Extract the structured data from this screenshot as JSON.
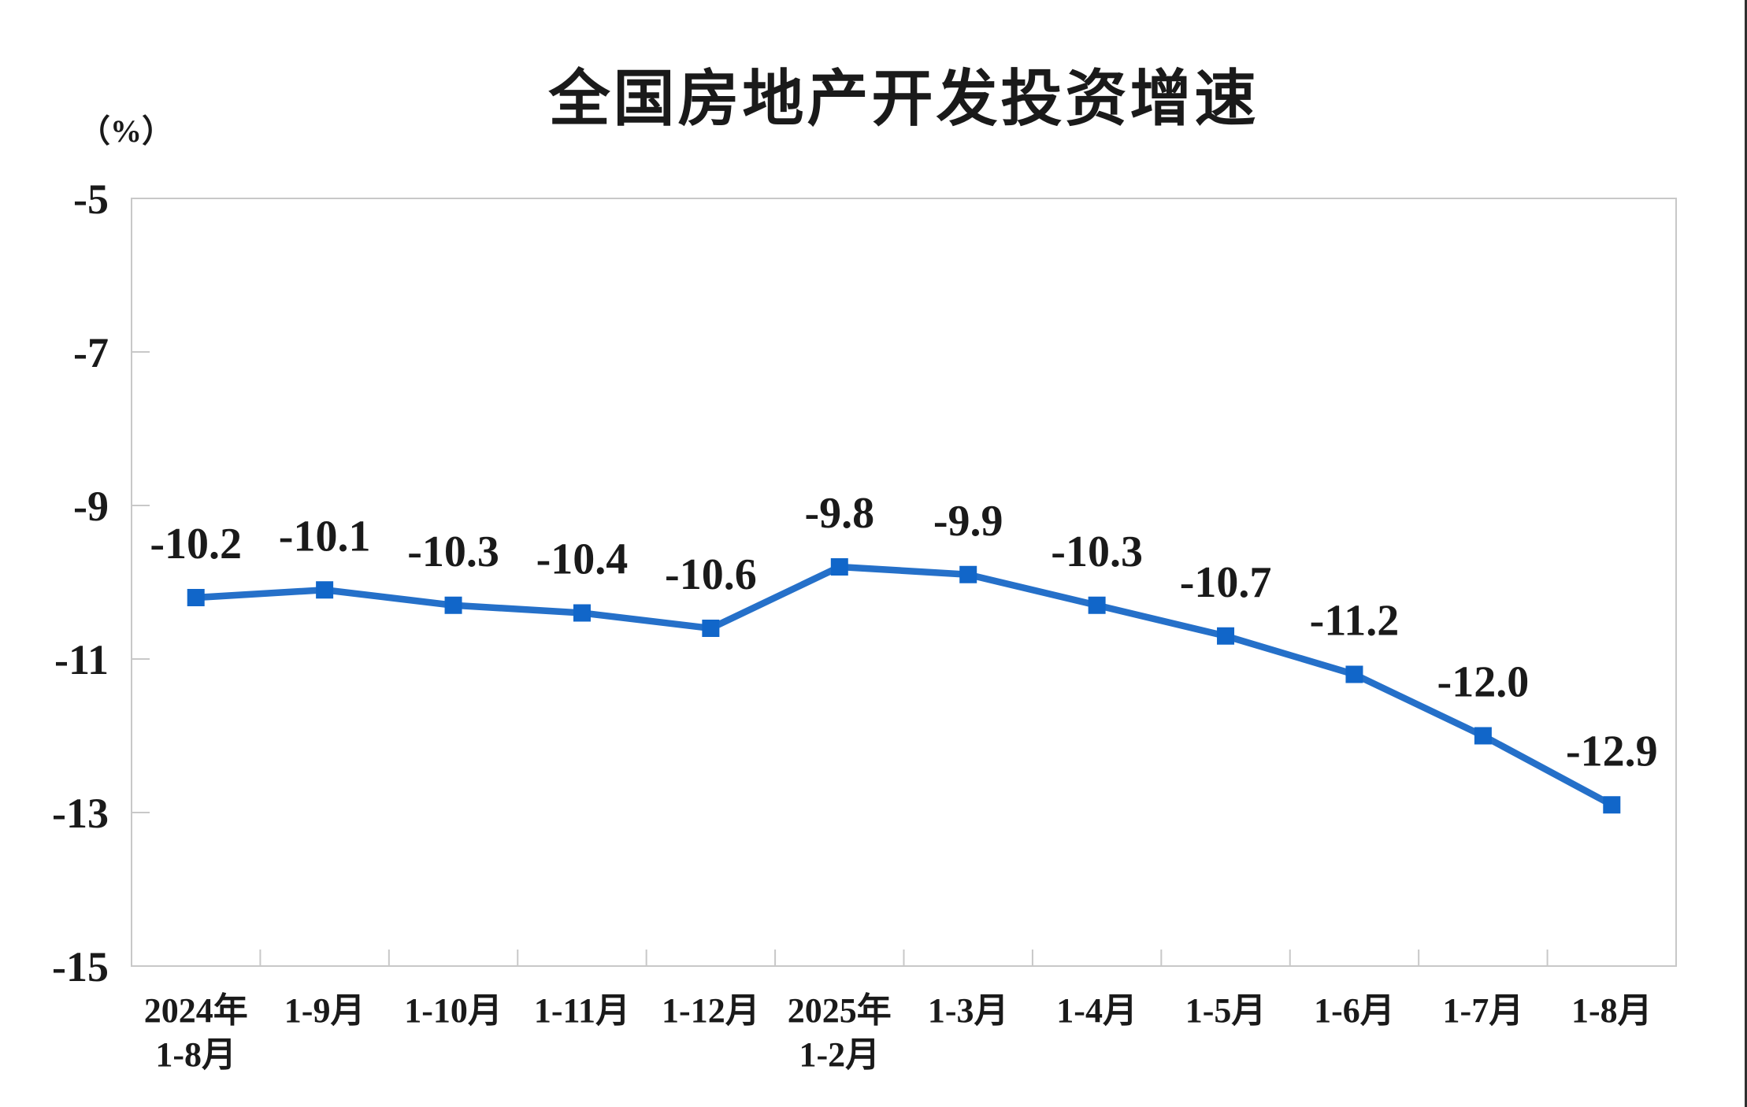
{
  "page": {
    "background_color": "#ffffff",
    "right_edge_color": "#2f2f2f"
  },
  "chart_data": {
    "type": "line",
    "title": "全国房地产开发投资增速",
    "unit_label": "（%）",
    "categories": [
      "2024年\n1-8月",
      "1-9月",
      "1-10月",
      "1-11月",
      "1-12月",
      "2025年\n1-2月",
      "1-3月",
      "1-4月",
      "1-5月",
      "1-6月",
      "1-7月",
      "1-8月"
    ],
    "values": [
      -10.2,
      -10.1,
      -10.3,
      -10.4,
      -10.6,
      -9.8,
      -9.9,
      -10.3,
      -10.7,
      -11.2,
      -12.0,
      -12.9
    ],
    "data_labels": [
      "-10.2",
      "-10.1",
      "-10.3",
      "-10.4",
      "-10.6",
      "-9.8",
      "-9.9",
      "-10.3",
      "-10.7",
      "-11.2",
      "-12.0",
      "-12.9"
    ],
    "y_ticks": [
      -5,
      -7,
      -9,
      -11,
      -13,
      -15
    ],
    "ylim": [
      -15,
      -5
    ],
    "xlabel": "",
    "ylabel": "（%）",
    "grid": false,
    "legend": "none",
    "line_color": "#2570c9",
    "marker_color": "#1166c9",
    "axis_color": "#c8c8c8",
    "text_color": "#1a1a1a"
  }
}
